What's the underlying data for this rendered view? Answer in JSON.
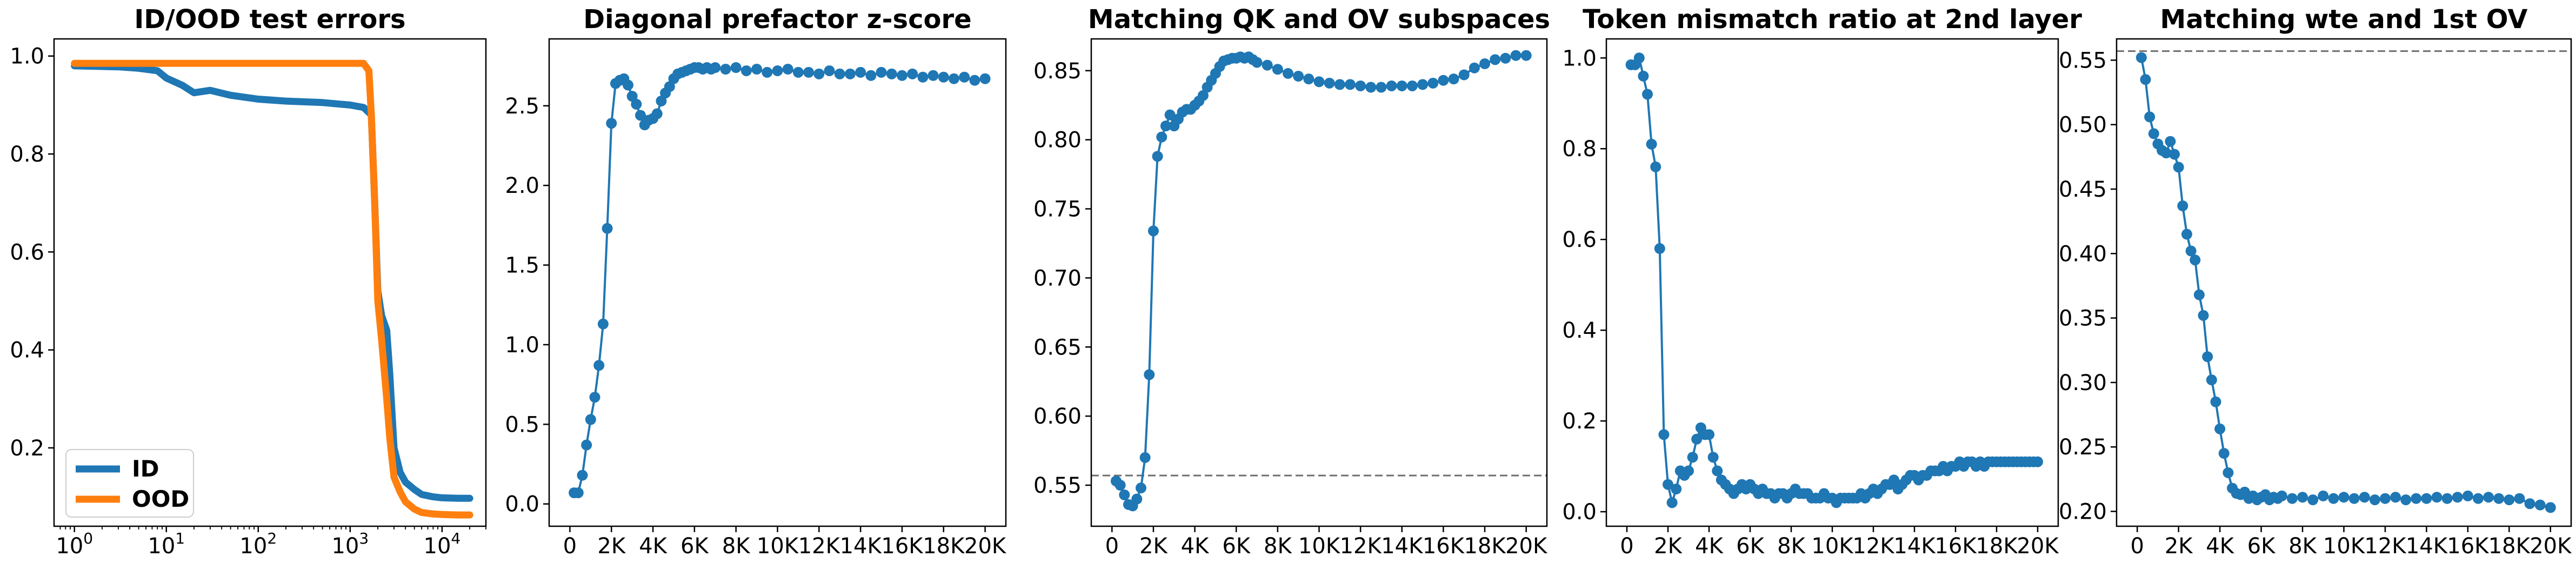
{
  "chart_data": [
    {
      "type": "line",
      "title": "ID/OOD test errors",
      "xlabel": "",
      "ylabel": "",
      "xscale": "log",
      "xlim": [
        0.6,
        30000
      ],
      "ylim": [
        0.04,
        1.035
      ],
      "x_ticks": [
        1,
        10,
        100,
        1000,
        10000
      ],
      "x_tick_labels": [
        {
          "base": "10",
          "exp": "0"
        },
        {
          "base": "10",
          "exp": "1"
        },
        {
          "base": "10",
          "exp": "2"
        },
        {
          "base": "10",
          "exp": "3"
        },
        {
          "base": "10",
          "exp": "4"
        }
      ],
      "y_ticks": [
        0.2,
        0.4,
        0.6,
        0.8,
        1.0
      ],
      "y_tick_labels": [
        "0.2",
        "0.4",
        "0.6",
        "0.8",
        "1.0"
      ],
      "grid": false,
      "legend": "bottom-left",
      "series": [
        {
          "name": "ID",
          "color": "#1f77b4",
          "x": [
            1,
            3,
            5,
            8,
            10,
            15,
            20,
            30,
            50,
            100,
            200,
            500,
            1000,
            1400,
            1700,
            1850,
            2000,
            2200,
            2500,
            2700,
            3000,
            3500,
            4000,
            5000,
            6000,
            8000,
            10000,
            15000,
            20000
          ],
          "y": [
            0.98,
            0.978,
            0.975,
            0.97,
            0.955,
            0.94,
            0.925,
            0.93,
            0.92,
            0.912,
            0.908,
            0.905,
            0.9,
            0.895,
            0.88,
            0.7,
            0.52,
            0.47,
            0.44,
            0.35,
            0.2,
            0.15,
            0.13,
            0.115,
            0.105,
            0.1,
            0.098,
            0.097,
            0.097
          ]
        },
        {
          "name": "OOD",
          "color": "#ff7f0e",
          "x": [
            1,
            3,
            10,
            30,
            100,
            300,
            1000,
            1400,
            1600,
            1700,
            1850,
            2000,
            2200,
            2500,
            2700,
            3000,
            3500,
            4000,
            5000,
            6000,
            8000,
            10000,
            15000,
            20000
          ],
          "y": [
            0.985,
            0.985,
            0.985,
            0.985,
            0.985,
            0.985,
            0.985,
            0.985,
            0.97,
            0.88,
            0.7,
            0.5,
            0.42,
            0.3,
            0.22,
            0.14,
            0.11,
            0.09,
            0.075,
            0.068,
            0.065,
            0.064,
            0.063,
            0.063
          ]
        }
      ]
    },
    {
      "type": "line",
      "title": "Diagonal prefactor z-score",
      "xlabel": "",
      "ylabel": "",
      "xlim": [
        -1000,
        21000
      ],
      "ylim": [
        -0.14,
        2.92
      ],
      "x_ticks": [
        0,
        2000,
        4000,
        6000,
        8000,
        10000,
        12000,
        14000,
        16000,
        18000,
        20000
      ],
      "x_tick_labels": [
        "0",
        "2K",
        "4K",
        "6K",
        "8K",
        "10K",
        "12K",
        "14K",
        "16K",
        "18K",
        "20K"
      ],
      "y_ticks": [
        0.0,
        0.5,
        1.0,
        1.5,
        2.0,
        2.5
      ],
      "y_tick_labels": [
        "0.0",
        "0.5",
        "1.0",
        "1.5",
        "2.0",
        "2.5"
      ],
      "grid": false,
      "markers": true,
      "series": [
        {
          "color": "#1f77b4",
          "x": [
            200,
            400,
            600,
            800,
            1000,
            1200,
            1400,
            1600,
            1800,
            2000,
            2200,
            2400,
            2600,
            2800,
            3000,
            3200,
            3400,
            3600,
            3800,
            4000,
            4200,
            4400,
            4600,
            4800,
            5000,
            5200,
            5400,
            5600,
            5800,
            6000,
            6200,
            6400,
            6600,
            6800,
            7000,
            7500,
            8000,
            8500,
            9000,
            9500,
            10000,
            10500,
            11000,
            11500,
            12000,
            12500,
            13000,
            13500,
            14000,
            14500,
            15000,
            15500,
            16000,
            16500,
            17000,
            17500,
            18000,
            18500,
            19000,
            19500,
            20000
          ],
          "y": [
            0.07,
            0.07,
            0.18,
            0.37,
            0.53,
            0.67,
            0.87,
            1.13,
            1.73,
            2.39,
            2.64,
            2.66,
            2.67,
            2.63,
            2.56,
            2.51,
            2.44,
            2.38,
            2.41,
            2.42,
            2.45,
            2.53,
            2.58,
            2.62,
            2.67,
            2.7,
            2.71,
            2.72,
            2.73,
            2.74,
            2.74,
            2.73,
            2.74,
            2.73,
            2.74,
            2.73,
            2.74,
            2.72,
            2.73,
            2.71,
            2.72,
            2.73,
            2.71,
            2.71,
            2.7,
            2.72,
            2.7,
            2.7,
            2.71,
            2.69,
            2.71,
            2.7,
            2.69,
            2.7,
            2.68,
            2.69,
            2.68,
            2.67,
            2.68,
            2.66,
            2.67
          ]
        }
      ]
    },
    {
      "type": "line",
      "title": "Matching QK and OV subspaces",
      "xlabel": "",
      "ylabel": "",
      "xlim": [
        -1000,
        21000
      ],
      "ylim": [
        0.5203,
        0.873
      ],
      "x_ticks": [
        0,
        2000,
        4000,
        6000,
        8000,
        10000,
        12000,
        14000,
        16000,
        18000,
        20000
      ],
      "x_tick_labels": [
        "0",
        "2K",
        "4K",
        "6K",
        "8K",
        "10K",
        "12K",
        "14K",
        "16K",
        "18K",
        "20K"
      ],
      "y_ticks": [
        0.55,
        0.6,
        0.65,
        0.7,
        0.75,
        0.8,
        0.85
      ],
      "y_tick_labels": [
        "0.55",
        "0.60",
        "0.65",
        "0.70",
        "0.75",
        "0.80",
        "0.85"
      ],
      "grid": false,
      "markers": true,
      "hline": 0.557,
      "series": [
        {
          "color": "#1f77b4",
          "x": [
            200,
            400,
            600,
            800,
            1000,
            1200,
            1400,
            1600,
            1800,
            2000,
            2200,
            2400,
            2600,
            2800,
            3000,
            3200,
            3400,
            3600,
            3800,
            4000,
            4200,
            4400,
            4600,
            4800,
            5000,
            5200,
            5400,
            5600,
            5800,
            6000,
            6200,
            6400,
            6600,
            6800,
            7000,
            7500,
            8000,
            8500,
            9000,
            9500,
            10000,
            10500,
            11000,
            11500,
            12000,
            12500,
            13000,
            13500,
            14000,
            14500,
            15000,
            15500,
            16000,
            16500,
            17000,
            17500,
            18000,
            18500,
            19000,
            19500,
            20000
          ],
          "y": [
            0.553,
            0.55,
            0.543,
            0.536,
            0.535,
            0.54,
            0.548,
            0.57,
            0.63,
            0.734,
            0.788,
            0.802,
            0.81,
            0.818,
            0.81,
            0.815,
            0.82,
            0.822,
            0.822,
            0.825,
            0.828,
            0.832,
            0.838,
            0.843,
            0.848,
            0.853,
            0.857,
            0.858,
            0.859,
            0.859,
            0.86,
            0.859,
            0.86,
            0.858,
            0.856,
            0.854,
            0.851,
            0.848,
            0.846,
            0.844,
            0.842,
            0.841,
            0.84,
            0.84,
            0.839,
            0.838,
            0.838,
            0.839,
            0.839,
            0.839,
            0.84,
            0.841,
            0.843,
            0.844,
            0.847,
            0.852,
            0.855,
            0.858,
            0.859,
            0.861,
            0.861
          ]
        }
      ]
    },
    {
      "type": "line",
      "title": "Token mismatch ratio at 2nd layer",
      "xlabel": "",
      "ylabel": "",
      "xlim": [
        -1000,
        21000
      ],
      "ylim": [
        -0.032,
        1.042
      ],
      "x_ticks": [
        0,
        2000,
        4000,
        6000,
        8000,
        10000,
        12000,
        14000,
        16000,
        18000,
        20000
      ],
      "x_tick_labels": [
        "0",
        "2K",
        "4K",
        "6K",
        "8K",
        "10K",
        "12K",
        "14K",
        "16K",
        "18K",
        "20K"
      ],
      "y_ticks": [
        0.0,
        0.2,
        0.4,
        0.6,
        0.8,
        1.0
      ],
      "y_tick_labels": [
        "0.0",
        "0.2",
        "0.4",
        "0.6",
        "0.8",
        "1.0"
      ],
      "grid": false,
      "markers": true,
      "series": [
        {
          "color": "#1f77b4",
          "x": [
            200,
            400,
            600,
            800,
            1000,
            1200,
            1400,
            1600,
            1800,
            2000,
            2200,
            2400,
            2600,
            2800,
            3000,
            3200,
            3400,
            3600,
            3800,
            4000,
            4200,
            4400,
            4600,
            4800,
            5000,
            5200,
            5400,
            5600,
            5800,
            6000,
            6200,
            6400,
            6600,
            6800,
            7000,
            7200,
            7400,
            7600,
            7800,
            8000,
            8200,
            8400,
            8600,
            8800,
            9000,
            9200,
            9400,
            9600,
            9800,
            10000,
            10200,
            10400,
            10600,
            10800,
            11000,
            11200,
            11400,
            11600,
            11800,
            12000,
            12200,
            12400,
            12600,
            12800,
            13000,
            13200,
            13400,
            13600,
            13800,
            14000,
            14200,
            14400,
            14600,
            14800,
            15000,
            15200,
            15400,
            15600,
            15800,
            16000,
            16200,
            16400,
            16600,
            16800,
            17000,
            17200,
            17400,
            17600,
            17800,
            18000,
            18200,
            18400,
            18600,
            18800,
            19000,
            19200,
            19400,
            19600,
            19800,
            20000
          ],
          "y": [
            0.985,
            0.985,
            1.0,
            0.96,
            0.92,
            0.81,
            0.76,
            0.58,
            0.17,
            0.06,
            0.02,
            0.05,
            0.09,
            0.08,
            0.09,
            0.12,
            0.16,
            0.185,
            0.17,
            0.17,
            0.12,
            0.09,
            0.07,
            0.06,
            0.05,
            0.04,
            0.05,
            0.06,
            0.05,
            0.06,
            0.05,
            0.04,
            0.05,
            0.04,
            0.04,
            0.03,
            0.04,
            0.04,
            0.03,
            0.04,
            0.05,
            0.04,
            0.04,
            0.04,
            0.03,
            0.03,
            0.03,
            0.04,
            0.03,
            0.03,
            0.02,
            0.03,
            0.03,
            0.03,
            0.03,
            0.03,
            0.04,
            0.03,
            0.04,
            0.05,
            0.04,
            0.05,
            0.06,
            0.06,
            0.07,
            0.05,
            0.06,
            0.07,
            0.08,
            0.08,
            0.07,
            0.08,
            0.08,
            0.09,
            0.09,
            0.09,
            0.1,
            0.09,
            0.1,
            0.1,
            0.11,
            0.1,
            0.11,
            0.11,
            0.1,
            0.11,
            0.1,
            0.11,
            0.11,
            0.11,
            0.11,
            0.11,
            0.11,
            0.11,
            0.11,
            0.11,
            0.11,
            0.11,
            0.11,
            0.11
          ]
        }
      ]
    },
    {
      "type": "line",
      "title": "Matching wte and 1st OV",
      "xlabel": "",
      "ylabel": "",
      "xlim": [
        -1000,
        21000
      ],
      "ylim": [
        0.1885,
        0.5665
      ],
      "x_ticks": [
        0,
        2000,
        4000,
        6000,
        8000,
        10000,
        12000,
        14000,
        16000,
        18000,
        20000
      ],
      "x_tick_labels": [
        "0",
        "2K",
        "4K",
        "6K",
        "8K",
        "10K",
        "12K",
        "14K",
        "16K",
        "18K",
        "20K"
      ],
      "y_ticks": [
        0.2,
        0.25,
        0.3,
        0.35,
        0.4,
        0.45,
        0.5,
        0.55
      ],
      "y_tick_labels": [
        "0.20",
        "0.25",
        "0.30",
        "0.35",
        "0.40",
        "0.45",
        "0.50",
        "0.55"
      ],
      "grid": false,
      "markers": true,
      "hline": 0.557,
      "series": [
        {
          "color": "#1f77b4",
          "x": [
            200,
            400,
            600,
            800,
            1000,
            1200,
            1400,
            1600,
            1800,
            2000,
            2200,
            2400,
            2600,
            2800,
            3000,
            3200,
            3400,
            3600,
            3800,
            4000,
            4200,
            4400,
            4600,
            4800,
            5000,
            5200,
            5400,
            5600,
            5800,
            6000,
            6200,
            6400,
            6600,
            6800,
            7000,
            7500,
            8000,
            8500,
            9000,
            9500,
            10000,
            10500,
            11000,
            11500,
            12000,
            12500,
            13000,
            13500,
            14000,
            14500,
            15000,
            15500,
            16000,
            16500,
            17000,
            17500,
            18000,
            18500,
            19000,
            19500,
            20000
          ],
          "y": [
            0.552,
            0.535,
            0.506,
            0.493,
            0.485,
            0.48,
            0.478,
            0.487,
            0.477,
            0.467,
            0.437,
            0.415,
            0.402,
            0.395,
            0.368,
            0.352,
            0.32,
            0.302,
            0.285,
            0.264,
            0.245,
            0.23,
            0.218,
            0.214,
            0.213,
            0.215,
            0.21,
            0.212,
            0.209,
            0.211,
            0.213,
            0.209,
            0.211,
            0.21,
            0.212,
            0.21,
            0.211,
            0.209,
            0.212,
            0.21,
            0.211,
            0.21,
            0.211,
            0.209,
            0.21,
            0.211,
            0.209,
            0.21,
            0.21,
            0.211,
            0.21,
            0.211,
            0.212,
            0.21,
            0.211,
            0.21,
            0.209,
            0.21,
            0.206,
            0.205,
            0.203
          ]
        }
      ]
    }
  ]
}
